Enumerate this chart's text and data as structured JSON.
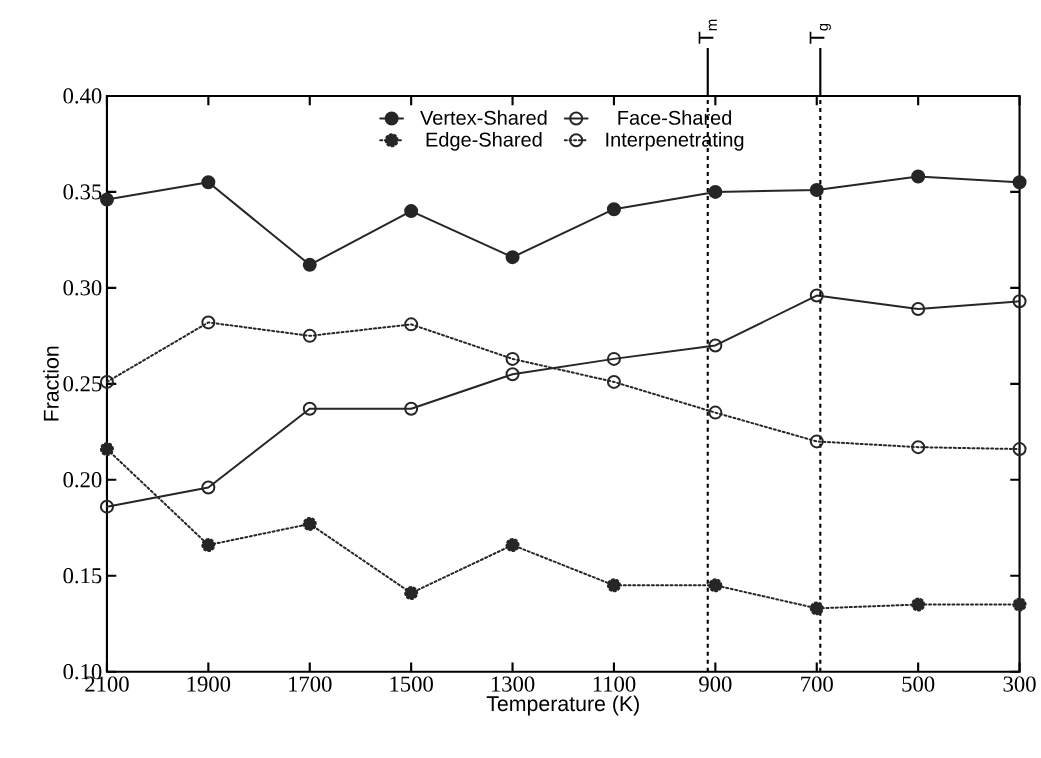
{
  "chart_data": {
    "type": "line",
    "xlabel": "Temperature (K)",
    "ylabel": "Fraction",
    "x": [
      2100,
      1900,
      1700,
      1500,
      1300,
      1100,
      900,
      700,
      500,
      300
    ],
    "series": [
      {
        "name": "Vertex-Shared",
        "color": "#262626",
        "marker": "circle",
        "line_style": "solid",
        "values": [
          0.346,
          0.355,
          0.312,
          0.34,
          0.316,
          0.341,
          0.35,
          0.351,
          0.358,
          0.355
        ]
      },
      {
        "name": "Face-Shared",
        "color": "#262626",
        "marker": "open circle",
        "line_style": "solid",
        "values": [
          0.186,
          0.196,
          0.237,
          0.237,
          0.255,
          0.263,
          0.27,
          0.296,
          0.289,
          0.293
        ]
      },
      {
        "name": "Edge-Shared",
        "color": "#262626",
        "marker": "circle",
        "line_style": "dotted",
        "values": [
          0.216,
          0.166,
          0.177,
          0.141,
          0.166,
          0.145,
          0.145,
          0.133,
          0.135,
          0.135
        ]
      },
      {
        "name": "Interpenetrating",
        "color": "#262626",
        "marker": "open circle",
        "line_style": "dotted",
        "values": [
          0.251,
          0.282,
          0.275,
          0.281,
          0.263,
          0.251,
          0.235,
          0.22,
          0.217,
          0.216
        ]
      }
    ],
    "xlim": [
      2100,
      300
    ],
    "xticks": [
      2100,
      1900,
      1700,
      1500,
      1300,
      1100,
      900,
      700,
      500,
      300
    ],
    "ylim": [
      0.1,
      0.4
    ],
    "yticks": [
      {
        "value": 0.1,
        "label": "0.10"
      },
      0.15,
      {
        "value": 0.2,
        "label": "0.20"
      },
      0.25,
      {
        "value": 0.3,
        "label": "0.30"
      },
      0.35,
      {
        "value": 0.4,
        "label": "0.40"
      }
    ],
    "ref_lines": [
      {
        "axis": "x",
        "value": 915,
        "label": "T$_{m}$",
        "line_style": "dashed",
        "color": "#000000"
      },
      {
        "axis": "x",
        "value": 693,
        "label": "T$_{g}$",
        "line_style": "dashed",
        "color": "#000000"
      }
    ],
    "grid": false,
    "legend": "top"
  }
}
